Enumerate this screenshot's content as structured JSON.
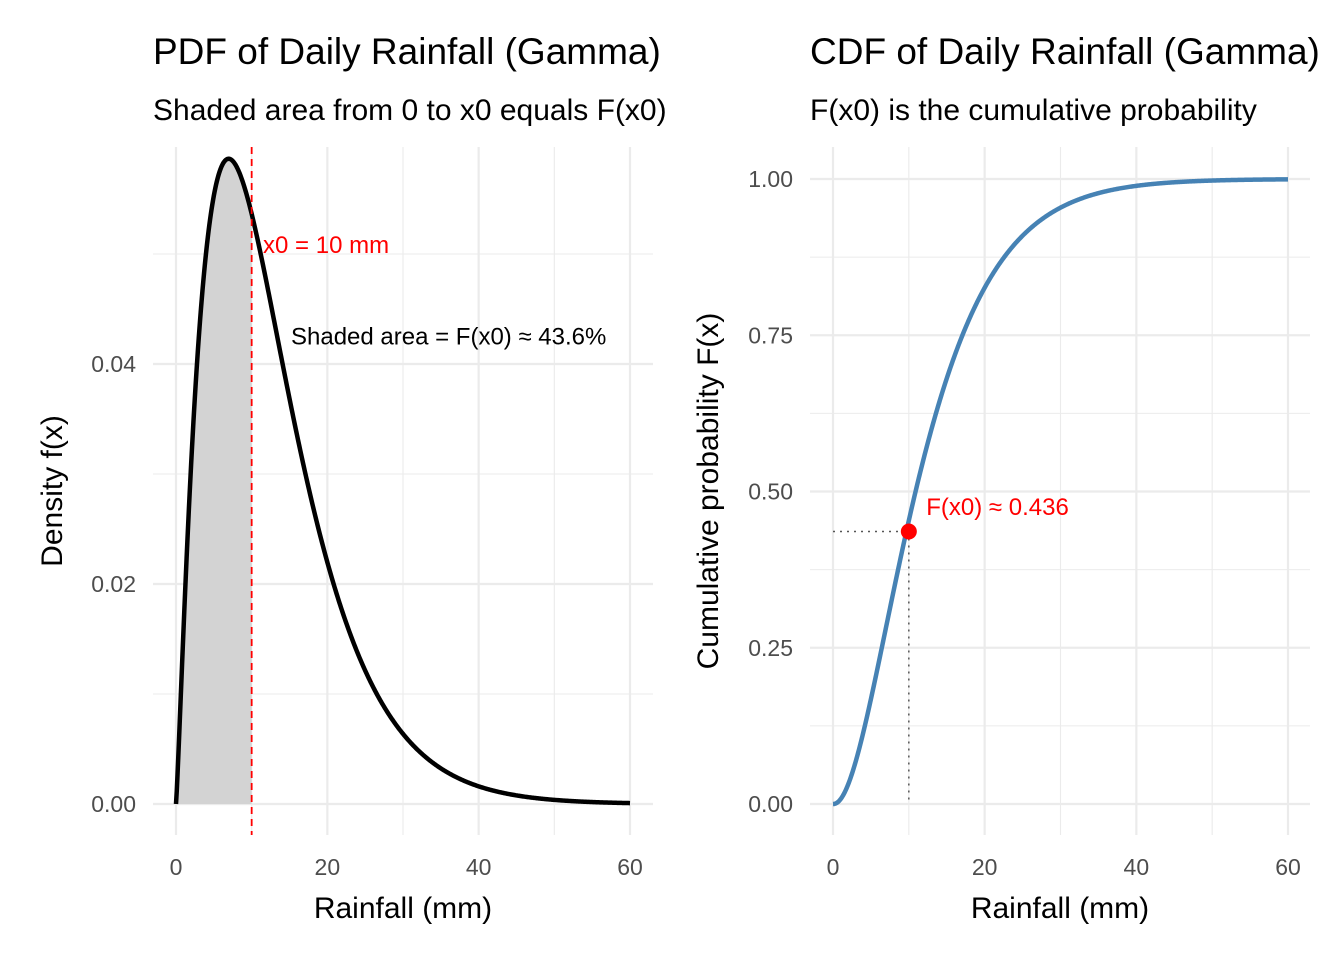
{
  "chart_data": [
    {
      "type": "area",
      "title": "PDF of Daily Rainfall (Gamma)",
      "subtitle": "Shaded area from 0 to x0 equals F(x0)",
      "xlabel": "Rainfall (mm)",
      "ylabel": "Density f(x)",
      "xlim": [
        0,
        60
      ],
      "ylim": [
        0,
        0.057
      ],
      "x_ticks": [
        0,
        20,
        40,
        60
      ],
      "x_tick_labels": [
        "0",
        "20",
        "40",
        "60"
      ],
      "y_ticks": [
        0,
        0.02,
        0.04
      ],
      "y_tick_labels": [
        "0.00",
        "0.02",
        "0.04"
      ],
      "grid": true,
      "distribution": {
        "name": "gamma",
        "shape": 2.2,
        "scale": 5.8
      },
      "curve_color": "#000000",
      "shade_color": "#d3d3d3",
      "x0": 10,
      "x0_line_color": "#ff0000",
      "annotations": [
        {
          "text": "x0 = 10 mm",
          "x": 11.5,
          "y": 0.0508,
          "color": "#ff0000"
        },
        {
          "text": "Shaded area = F(x0) ≈ 43.6%",
          "x": 15.2,
          "y": 0.0425,
          "color": "#000000"
        }
      ]
    },
    {
      "type": "line",
      "title": "CDF of Daily Rainfall (Gamma)",
      "subtitle": "F(x0) is the cumulative probability",
      "xlabel": "Rainfall (mm)",
      "ylabel": "Cumulative probability F(x)",
      "xlim": [
        0,
        60
      ],
      "ylim": [
        0,
        1
      ],
      "x_ticks": [
        0,
        20,
        40,
        60
      ],
      "x_tick_labels": [
        "0",
        "20",
        "40",
        "60"
      ],
      "y_ticks": [
        0,
        0.25,
        0.5,
        0.75,
        1.0
      ],
      "y_tick_labels": [
        "0.00",
        "0.25",
        "0.50",
        "0.75",
        "1.00"
      ],
      "grid": true,
      "distribution": {
        "name": "gamma",
        "shape": 2.2,
        "scale": 5.8
      },
      "curve_color": "#4682b4",
      "x0": 10,
      "F_x0": 0.436,
      "point_color": "#ff0000",
      "annotations": [
        {
          "text": "F(x0) ≈ 0.436",
          "x": 12.3,
          "y": 0.475,
          "color": "#ff0000"
        }
      ]
    }
  ]
}
